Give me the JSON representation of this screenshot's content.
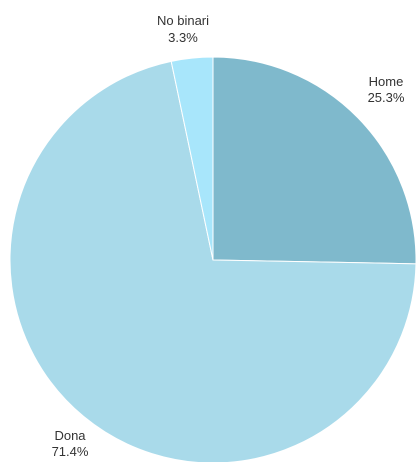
{
  "chart_data": {
    "type": "pie",
    "title": "",
    "series": [
      {
        "name": "Home",
        "value": 25.3,
        "label": "Home",
        "value_label": "25.3%",
        "color": "#7fb9cc"
      },
      {
        "name": "Dona",
        "value": 71.4,
        "label": "Dona",
        "value_label": "71.4%",
        "color": "#a9daea"
      },
      {
        "name": "No binari",
        "value": 3.3,
        "label": "No binari",
        "value_label": "3.3%",
        "color": "#a8e6fb"
      }
    ],
    "start_angle_deg": 0,
    "direction": "clockwise",
    "legend": "none",
    "labels": "outside-slice"
  }
}
